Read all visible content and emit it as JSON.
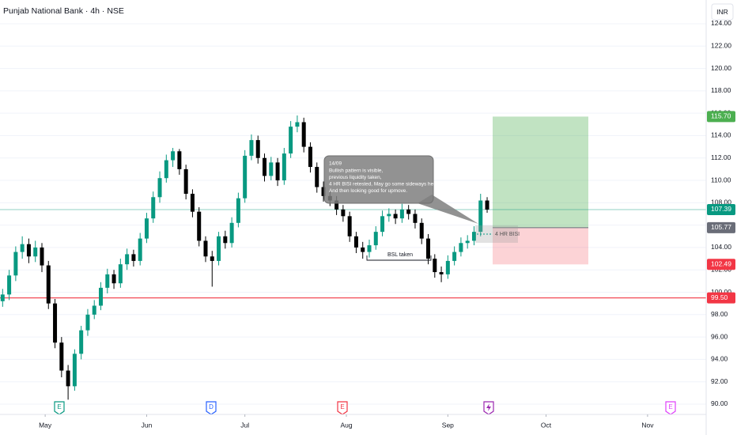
{
  "chart_data": {
    "type": "candlestick",
    "title": "Punjab National Bank · 4h · NSE",
    "currency": "INR",
    "x": [
      -13,
      -11,
      -9,
      -7,
      -5,
      -3,
      -1,
      1,
      3,
      5,
      7,
      9,
      11,
      13,
      15,
      17,
      19,
      21,
      23,
      25,
      27,
      29,
      31,
      33,
      35,
      37,
      39,
      41,
      43,
      45,
      47,
      49,
      51,
      53,
      55,
      57,
      59,
      61,
      63,
      65,
      67,
      69,
      71,
      73,
      75,
      77,
      79,
      81,
      83,
      85,
      87,
      89,
      91,
      93,
      95,
      97,
      99,
      101,
      103,
      105,
      107,
      109,
      111,
      113,
      115,
      117,
      119,
      121,
      123,
      125,
      127,
      129,
      131,
      133,
      135
    ],
    "open": [
      99.2,
      99.8,
      101.5,
      103.6,
      104.3,
      103.2,
      104.0,
      102.4,
      99.0,
      95.5,
      93.0,
      91.6,
      94.5,
      96.6,
      98.0,
      98.8,
      100.4,
      101.6,
      100.8,
      102.5,
      103.4,
      102.8,
      104.8,
      106.6,
      108.5,
      110.2,
      111.8,
      112.6,
      111.0,
      108.8,
      107.2,
      104.6,
      103.2,
      102.8,
      105.0,
      104.4,
      106.2,
      108.4,
      112.2,
      113.6,
      112.0,
      110.4,
      111.6,
      110.0,
      112.4,
      114.8,
      115.2,
      113.0,
      111.2,
      109.4,
      108.6,
      108.2,
      107.4,
      106.8,
      105.0,
      104.0,
      103.6,
      104.2,
      105.4,
      106.8,
      107.0,
      106.6,
      107.4,
      107.0,
      106.2,
      104.8,
      103.0,
      101.8,
      101.6,
      102.8,
      103.6,
      104.4,
      104.6,
      105.4,
      108.2
    ],
    "high": [
      100.3,
      102.0,
      104.1,
      105.0,
      104.8,
      104.6,
      104.4,
      102.8,
      99.4,
      96.0,
      93.5,
      94.9,
      97.0,
      98.5,
      99.3,
      100.9,
      102.1,
      102.0,
      103.0,
      103.9,
      103.8,
      105.3,
      107.1,
      109.0,
      110.8,
      112.3,
      112.9,
      112.8,
      111.4,
      109.2,
      107.6,
      105.0,
      103.7,
      105.4,
      105.5,
      106.7,
      108.9,
      112.7,
      114.1,
      114.0,
      112.4,
      112.1,
      112.0,
      112.9,
      115.3,
      115.8,
      115.6,
      113.4,
      111.6,
      109.9,
      109.1,
      108.6,
      107.8,
      107.2,
      105.4,
      104.5,
      104.7,
      105.9,
      107.3,
      107.5,
      107.4,
      107.9,
      107.8,
      107.4,
      106.6,
      105.2,
      103.4,
      102.3,
      103.3,
      104.1,
      104.9,
      105.1,
      105.9,
      108.8,
      108.5
    ],
    "low": [
      98.7,
      99.3,
      101.0,
      103.0,
      102.6,
      102.7,
      101.8,
      98.5,
      95.0,
      92.4,
      90.4,
      91.2,
      94.0,
      96.1,
      97.6,
      98.4,
      99.9,
      100.3,
      100.4,
      102.0,
      102.3,
      102.4,
      104.4,
      106.2,
      108.0,
      109.8,
      111.2,
      110.5,
      108.3,
      106.7,
      104.1,
      102.7,
      100.5,
      102.4,
      103.9,
      104.0,
      105.8,
      108.0,
      111.8,
      111.5,
      109.9,
      110.0,
      109.5,
      109.6,
      112.0,
      114.3,
      112.5,
      110.7,
      108.9,
      108.1,
      107.7,
      106.9,
      106.3,
      104.5,
      103.5,
      103.0,
      103.1,
      103.8,
      105.0,
      106.3,
      106.1,
      106.2,
      106.5,
      105.7,
      104.3,
      102.5,
      101.3,
      100.9,
      101.2,
      102.4,
      103.2,
      103.9,
      104.2,
      105.0,
      107.1
    ],
    "close": [
      99.8,
      101.5,
      103.6,
      104.3,
      103.2,
      104.0,
      102.4,
      99.0,
      95.5,
      93.0,
      91.6,
      94.5,
      96.6,
      98.0,
      98.8,
      100.4,
      101.6,
      100.8,
      102.5,
      103.4,
      102.8,
      104.8,
      106.6,
      108.5,
      110.2,
      111.8,
      112.6,
      111.0,
      108.8,
      107.2,
      104.6,
      103.2,
      102.8,
      105.0,
      104.4,
      106.2,
      108.4,
      112.2,
      113.6,
      112.0,
      110.4,
      111.6,
      110.0,
      112.4,
      114.8,
      115.2,
      113.0,
      111.2,
      109.4,
      108.6,
      108.2,
      107.4,
      106.8,
      105.0,
      104.0,
      103.6,
      104.2,
      105.4,
      106.8,
      107.0,
      106.6,
      107.4,
      107.0,
      106.2,
      104.8,
      103.0,
      101.8,
      101.6,
      102.8,
      103.6,
      104.4,
      104.6,
      105.4,
      108.2,
      107.39
    ],
    "up_color": "#089981",
    "down_color": "#000000",
    "xlim": [
      -13.8,
      201.9
    ],
    "ylim": [
      89.08,
      126.12
    ],
    "xticks": [
      {
        "value": 0,
        "label": "May"
      },
      {
        "value": 31,
        "label": "Jun"
      },
      {
        "value": 61,
        "label": "Jul"
      },
      {
        "value": 92,
        "label": "Aug"
      },
      {
        "value": 123,
        "label": "Sep"
      },
      {
        "value": 153,
        "label": "Oct"
      },
      {
        "value": 184,
        "label": "Nov"
      }
    ],
    "yticks": [
      {
        "value": 90,
        "label": "90.00"
      },
      {
        "value": 92,
        "label": "92.00"
      },
      {
        "value": 94,
        "label": "94.00"
      },
      {
        "value": 96,
        "label": "96.00"
      },
      {
        "value": 98,
        "label": "98.00"
      },
      {
        "value": 100,
        "label": "100.00"
      },
      {
        "value": 102,
        "label": "102.00"
      },
      {
        "value": 104,
        "label": "104.00"
      },
      {
        "value": 106,
        "label": "106.00"
      },
      {
        "value": 108,
        "label": "108.00"
      },
      {
        "value": 110,
        "label": "110.00"
      },
      {
        "value": 112,
        "label": "112.00"
      },
      {
        "value": 114,
        "label": "114.00"
      },
      {
        "value": 116,
        "label": "116.00"
      },
      {
        "value": 118,
        "label": "118.00"
      },
      {
        "value": 120,
        "label": "120.00"
      },
      {
        "value": 122,
        "label": "122.00"
      },
      {
        "value": 124,
        "label": "124.00"
      }
    ],
    "grid": true,
    "levels": [
      {
        "value": 99.5,
        "label": "99.50",
        "color": "#f23645"
      },
      {
        "value": 107.39,
        "label": "107.39",
        "color": "#089981"
      }
    ],
    "position": {
      "target": {
        "value": 115.7,
        "label": "115.70",
        "color": "#4caf50"
      },
      "entry": {
        "value": 105.77,
        "label": "105.77",
        "color": "#6a6d78"
      },
      "stop": {
        "value": 102.49,
        "label": "102.49",
        "color": "#f23645"
      }
    },
    "callout": [
      "14/09",
      "Bullish pattern is visible,",
      "previous liquidity taken,",
      "4 HR BISI retested, May go some sideways here,",
      "And then looking good for upmove."
    ],
    "bsl_label": "BSL taken",
    "bisi_label": "4 HR BISI",
    "events": [
      {
        "label": "E",
        "color": "#089981"
      },
      {
        "label": "D",
        "color": "#2962ff"
      },
      {
        "label": "E",
        "color": "#f23645"
      },
      {
        "color": "#9c27b0"
      },
      {
        "label": "E",
        "color": "#e040fb"
      }
    ]
  }
}
